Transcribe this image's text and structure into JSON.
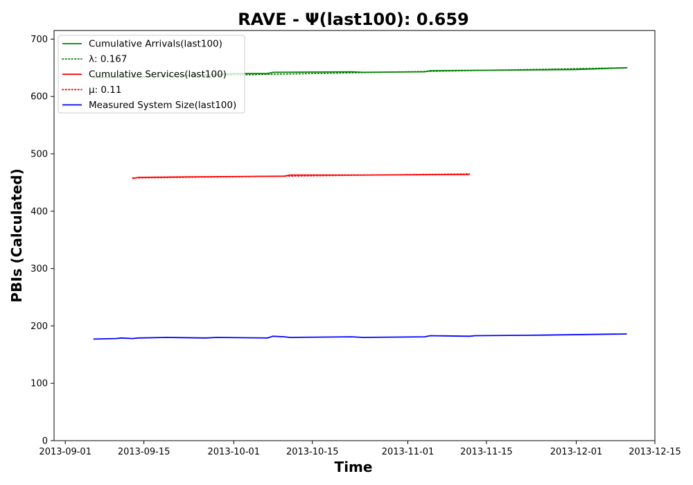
{
  "chart_data": {
    "type": "line",
    "title": "RAVE -  Ψ(last100): 0.659",
    "xlabel": "Time",
    "ylabel": "PBIs (Calculated)",
    "xlim": [
      "2013-08-30",
      "2013-12-15"
    ],
    "ylim": [
      0,
      715
    ],
    "x_ticks": [
      "2013-09-01",
      "2013-09-15",
      "2013-10-01",
      "2013-10-15",
      "2013-11-01",
      "2013-11-15",
      "2013-12-01",
      "2013-12-15"
    ],
    "y_ticks": [
      0,
      100,
      200,
      300,
      400,
      500,
      600,
      700
    ],
    "grid": false,
    "legend_position": "top-left",
    "series": [
      {
        "name": "Cumulative Arrivals(last100)",
        "color": "#008000",
        "style": "solid",
        "points": [
          {
            "x": "2013-09-06",
            "y": 633
          },
          {
            "x": "2013-09-14",
            "y": 634
          },
          {
            "x": "2013-09-20",
            "y": 636
          },
          {
            "x": "2013-09-28",
            "y": 638
          },
          {
            "x": "2013-10-01",
            "y": 640
          },
          {
            "x": "2013-10-07",
            "y": 640
          },
          {
            "x": "2013-10-08",
            "y": 642
          },
          {
            "x": "2013-10-22",
            "y": 643
          },
          {
            "x": "2013-10-24",
            "y": 642
          },
          {
            "x": "2013-11-04",
            "y": 643
          },
          {
            "x": "2013-11-05",
            "y": 645
          },
          {
            "x": "2013-11-20",
            "y": 646
          },
          {
            "x": "2013-12-01",
            "y": 647
          },
          {
            "x": "2013-12-10",
            "y": 650
          }
        ]
      },
      {
        "name": "λ: 0.167",
        "color": "#008000",
        "style": "dotted",
        "points": [
          {
            "x": "2013-09-06",
            "y": 633
          },
          {
            "x": "2013-12-10",
            "y": 650
          }
        ]
      },
      {
        "name": "Cumulative Services(last100)",
        "color": "#ff0000",
        "style": "solid",
        "points": [
          {
            "x": "2013-09-13",
            "y": 457
          },
          {
            "x": "2013-09-14",
            "y": 459
          },
          {
            "x": "2013-09-25",
            "y": 460
          },
          {
            "x": "2013-10-10",
            "y": 461
          },
          {
            "x": "2013-10-11",
            "y": 463
          },
          {
            "x": "2013-10-25",
            "y": 463
          },
          {
            "x": "2013-11-12",
            "y": 464
          }
        ]
      },
      {
        "name": "μ: 0.11",
        "color": "#ff0000",
        "style": "dotted",
        "points": [
          {
            "x": "2013-09-13",
            "y": 458
          },
          {
            "x": "2013-11-12",
            "y": 465
          }
        ]
      },
      {
        "name": "Measured System Size(last100)",
        "color": "#0000ff",
        "style": "solid",
        "points": [
          {
            "x": "2013-09-06",
            "y": 177
          },
          {
            "x": "2013-09-10",
            "y": 178
          },
          {
            "x": "2013-09-11",
            "y": 179
          },
          {
            "x": "2013-09-13",
            "y": 178
          },
          {
            "x": "2013-09-14",
            "y": 179
          },
          {
            "x": "2013-09-19",
            "y": 180
          },
          {
            "x": "2013-09-26",
            "y": 179
          },
          {
            "x": "2013-09-28",
            "y": 180
          },
          {
            "x": "2013-10-07",
            "y": 179
          },
          {
            "x": "2013-10-08",
            "y": 182
          },
          {
            "x": "2013-10-10",
            "y": 181
          },
          {
            "x": "2013-10-11",
            "y": 180
          },
          {
            "x": "2013-10-22",
            "y": 181
          },
          {
            "x": "2013-10-24",
            "y": 180
          },
          {
            "x": "2013-11-04",
            "y": 181
          },
          {
            "x": "2013-11-05",
            "y": 183
          },
          {
            "x": "2013-11-12",
            "y": 182
          },
          {
            "x": "2013-11-13",
            "y": 183
          },
          {
            "x": "2013-11-25",
            "y": 184
          },
          {
            "x": "2013-12-10",
            "y": 186
          }
        ]
      }
    ]
  }
}
